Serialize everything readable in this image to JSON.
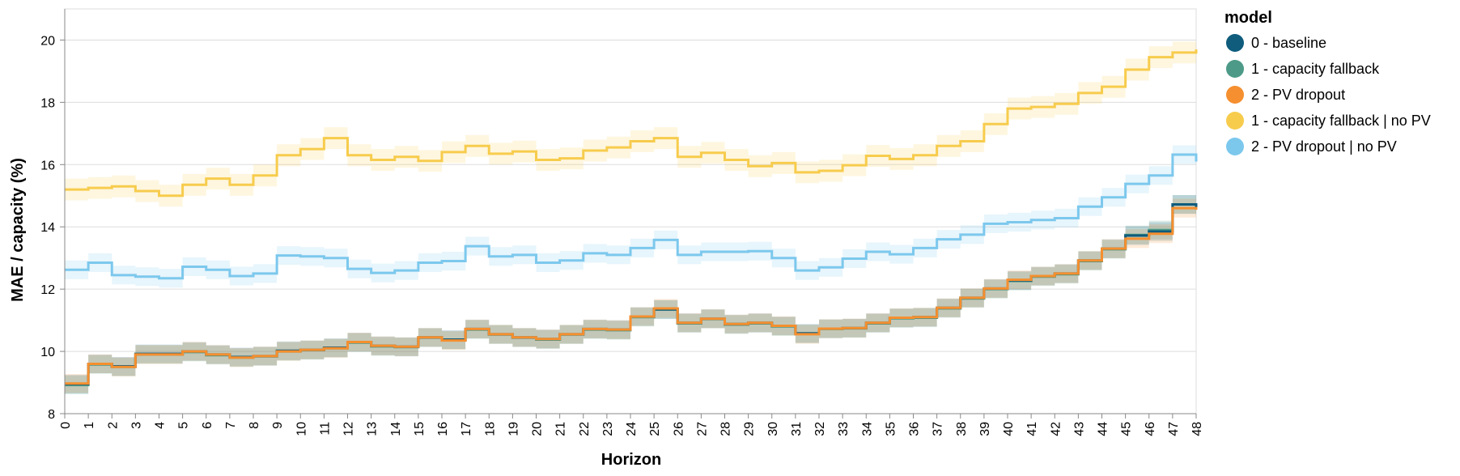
{
  "chart_data": {
    "type": "line",
    "interpolation": "step",
    "xlabel": "Horizon",
    "ylabel": "MAE / capacity (%)",
    "x": [
      0,
      1,
      2,
      3,
      4,
      5,
      6,
      7,
      8,
      9,
      10,
      11,
      12,
      13,
      14,
      15,
      16,
      17,
      18,
      19,
      20,
      21,
      22,
      23,
      24,
      25,
      26,
      27,
      28,
      29,
      30,
      31,
      32,
      33,
      34,
      35,
      36,
      37,
      38,
      39,
      40,
      41,
      42,
      43,
      44,
      45,
      46,
      47,
      48
    ],
    "xlim": [
      0,
      48
    ],
    "ylim": [
      8,
      21
    ],
    "yticks": [
      8,
      10,
      12,
      14,
      16,
      18,
      20
    ],
    "grid": true,
    "confidence_band": true,
    "legend": {
      "title": "model",
      "position": "right"
    },
    "series": [
      {
        "name": "0 - baseline",
        "color": "#0f5c7d",
        "values": [
          8.95,
          9.6,
          9.52,
          9.92,
          9.92,
          10.0,
          9.9,
          9.82,
          9.85,
          10.02,
          10.05,
          10.12,
          10.3,
          10.18,
          10.15,
          10.45,
          10.38,
          10.72,
          10.55,
          10.45,
          10.4,
          10.55,
          10.72,
          10.7,
          11.12,
          11.35,
          10.92,
          11.05,
          10.88,
          10.92,
          10.82,
          10.58,
          10.73,
          10.75,
          10.92,
          11.08,
          11.1,
          11.4,
          11.72,
          12.02,
          12.28,
          12.42,
          12.5,
          12.92,
          13.3,
          13.72,
          13.85,
          14.72,
          14.6
        ],
        "band": 0.3
      },
      {
        "name": "1 - capacity fallback",
        "color": "#4c9a87",
        "values": [
          8.92,
          9.58,
          9.5,
          9.9,
          9.9,
          9.98,
          9.88,
          9.8,
          9.84,
          10.0,
          10.04,
          10.1,
          10.28,
          10.16,
          10.14,
          10.44,
          10.36,
          10.7,
          10.54,
          10.44,
          10.38,
          10.54,
          10.7,
          10.68,
          11.1,
          11.34,
          10.9,
          11.04,
          10.86,
          10.9,
          10.8,
          10.56,
          10.72,
          10.74,
          10.9,
          11.06,
          11.08,
          11.38,
          11.7,
          12.0,
          12.26,
          12.4,
          12.48,
          12.9,
          13.28,
          13.74,
          13.9,
          14.72,
          14.68
        ],
        "band": 0.3
      },
      {
        "name": "2 - PV dropout",
        "color": "#f58f2f",
        "values": [
          8.97,
          9.6,
          9.5,
          9.9,
          9.9,
          10.0,
          9.9,
          9.8,
          9.85,
          10.0,
          10.05,
          10.1,
          10.3,
          10.18,
          10.15,
          10.45,
          10.35,
          10.72,
          10.55,
          10.45,
          10.4,
          10.55,
          10.72,
          10.7,
          11.12,
          11.38,
          10.92,
          11.05,
          10.88,
          10.92,
          10.82,
          10.55,
          10.73,
          10.75,
          10.92,
          11.08,
          11.1,
          11.4,
          11.72,
          12.02,
          12.3,
          12.42,
          12.5,
          12.92,
          13.3,
          13.62,
          13.78,
          14.6,
          14.55
        ],
        "band": 0.3
      },
      {
        "name": "1 - capacity fallback | no PV",
        "color": "#f7cc4d",
        "values": [
          15.2,
          15.25,
          15.3,
          15.15,
          15.0,
          15.35,
          15.55,
          15.35,
          15.65,
          16.3,
          16.5,
          16.85,
          16.3,
          16.15,
          16.25,
          16.12,
          16.4,
          16.6,
          16.35,
          16.42,
          16.15,
          16.2,
          16.45,
          16.55,
          16.75,
          16.85,
          16.25,
          16.38,
          16.15,
          15.95,
          16.05,
          15.75,
          15.8,
          15.98,
          16.28,
          16.18,
          16.3,
          16.6,
          16.75,
          17.3,
          17.8,
          17.85,
          17.95,
          18.3,
          18.5,
          19.05,
          19.45,
          19.6,
          19.7
        ],
        "band": 0.35
      },
      {
        "name": "2 - PV dropout | no PV",
        "color": "#7cc8ed",
        "values": [
          12.62,
          12.85,
          12.45,
          12.4,
          12.35,
          12.72,
          12.62,
          12.42,
          12.5,
          13.08,
          13.05,
          13.0,
          12.65,
          12.52,
          12.6,
          12.85,
          12.9,
          13.38,
          13.05,
          13.1,
          12.85,
          12.92,
          13.15,
          13.1,
          13.32,
          13.58,
          13.1,
          13.2,
          13.2,
          13.22,
          13.0,
          12.6,
          12.7,
          12.98,
          13.2,
          13.12,
          13.32,
          13.6,
          13.75,
          14.1,
          14.15,
          14.22,
          14.28,
          14.65,
          14.95,
          15.38,
          15.65,
          16.32,
          16.1
        ],
        "band": 0.3
      }
    ]
  }
}
